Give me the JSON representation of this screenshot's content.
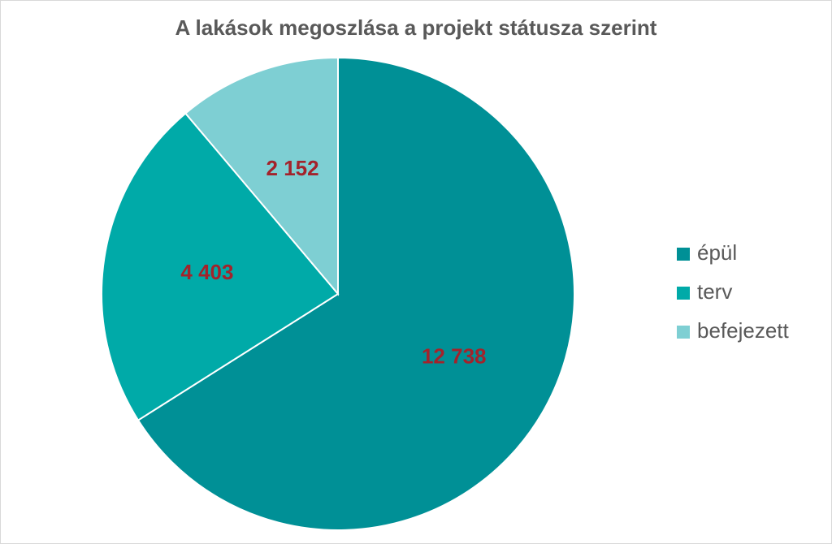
{
  "chart_data": {
    "type": "pie",
    "title": "A lakások megoszlása a projekt státusza szerint",
    "categories": [
      "épül",
      "terv",
      "befejezett"
    ],
    "values": [
      12738,
      4403,
      2152
    ],
    "value_labels": [
      "12 738",
      "4 403",
      "2 152"
    ],
    "colors": [
      "#009096",
      "#00aaa8",
      "#7ecfd3"
    ],
    "label_color": "#a3232b",
    "legend": "right"
  }
}
